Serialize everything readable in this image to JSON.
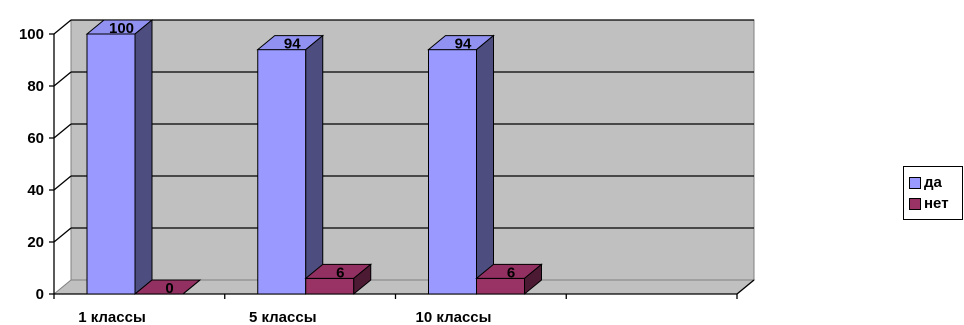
{
  "chart_data": {
    "type": "bar",
    "categories": [
      "1 классы",
      "5 классы",
      "10 классы"
    ],
    "series": [
      {
        "name": "да",
        "values": [
          100,
          94,
          94
        ],
        "color": "#9999FF"
      },
      {
        "name": "нет",
        "values": [
          0,
          6,
          6
        ],
        "color": "#993366"
      }
    ],
    "ylim": [
      0,
      100
    ],
    "yticks": [
      "0",
      "20",
      "40",
      "60",
      "80",
      "100"
    ],
    "grid": true,
    "legend_position": "right",
    "data_labels": true,
    "colors": {
      "wall": "#C0C0C0",
      "floor": "#C0C0C0"
    }
  }
}
